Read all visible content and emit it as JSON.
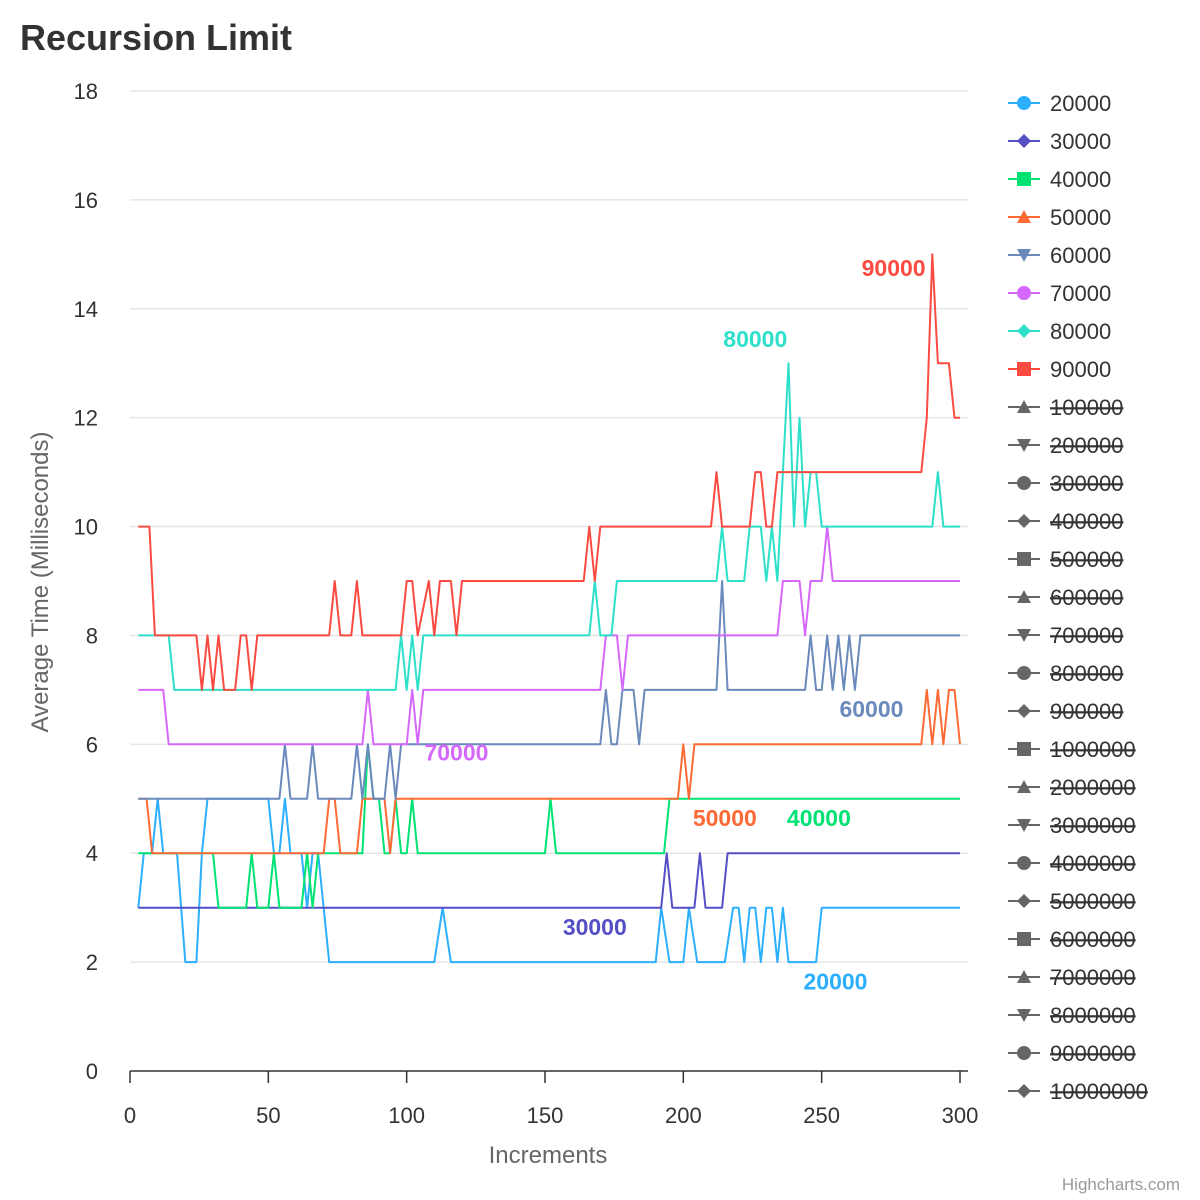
{
  "chart_data": {
    "type": "line",
    "title": "Recursion Limit",
    "xlabel": "Increments",
    "ylabel": "Average Time (Milliseconds)",
    "xlim": [
      0,
      300
    ],
    "ylim": [
      0,
      18
    ],
    "x_ticks": [
      0,
      50,
      100,
      150,
      200,
      250,
      300
    ],
    "y_ticks": [
      0,
      2,
      4,
      6,
      8,
      10,
      12,
      14,
      16,
      18
    ],
    "grid": "horizontal",
    "legend_position": "right",
    "credits": "Highcharts.com",
    "series": [
      {
        "name": "20000",
        "color": "#2caffe",
        "marker": "circle",
        "visible": true,
        "label_at": [
          255,
          1.5
        ],
        "points": [
          [
            3,
            3
          ],
          [
            5,
            4
          ],
          [
            8,
            4
          ],
          [
            10,
            5
          ],
          [
            12,
            4
          ],
          [
            15,
            4
          ],
          [
            17,
            4
          ],
          [
            20,
            2
          ],
          [
            24,
            2
          ],
          [
            26,
            4
          ],
          [
            28,
            5
          ],
          [
            50,
            5
          ],
          [
            52,
            4
          ],
          [
            54,
            4
          ],
          [
            56,
            5
          ],
          [
            58,
            4
          ],
          [
            60,
            4
          ],
          [
            62,
            4
          ],
          [
            64,
            3
          ],
          [
            66,
            4
          ],
          [
            68,
            4
          ],
          [
            72,
            2
          ],
          [
            110,
            2
          ],
          [
            113,
            3
          ],
          [
            116,
            2
          ],
          [
            190,
            2
          ],
          [
            192,
            3
          ],
          [
            195,
            2
          ],
          [
            198,
            2
          ],
          [
            200,
            2
          ],
          [
            202,
            3
          ],
          [
            205,
            2
          ],
          [
            215,
            2
          ],
          [
            218,
            3
          ],
          [
            220,
            3
          ],
          [
            222,
            2
          ],
          [
            224,
            3
          ],
          [
            226,
            3
          ],
          [
            228,
            2
          ],
          [
            230,
            3
          ],
          [
            232,
            3
          ],
          [
            234,
            2
          ],
          [
            236,
            3
          ],
          [
            238,
            2
          ],
          [
            248,
            2
          ],
          [
            250,
            3
          ],
          [
            300,
            3
          ]
        ]
      },
      {
        "name": "30000",
        "color": "#544fc5",
        "marker": "diamond",
        "visible": true,
        "label_at": [
          168,
          2.5
        ],
        "points": [
          [
            3,
            3
          ],
          [
            192,
            3
          ],
          [
            194,
            4
          ],
          [
            196,
            3
          ],
          [
            204,
            3
          ],
          [
            206,
            4
          ],
          [
            208,
            3
          ],
          [
            214,
            3
          ],
          [
            216,
            4
          ],
          [
            300,
            4
          ]
        ]
      },
      {
        "name": "40000",
        "color": "#00e272",
        "marker": "square",
        "visible": true,
        "label_at": [
          249,
          4.5
        ],
        "points": [
          [
            3,
            4
          ],
          [
            30,
            4
          ],
          [
            32,
            3
          ],
          [
            42,
            3
          ],
          [
            44,
            4
          ],
          [
            46,
            3
          ],
          [
            50,
            3
          ],
          [
            52,
            4
          ],
          [
            54,
            3
          ],
          [
            62,
            3
          ],
          [
            64,
            4
          ],
          [
            66,
            3
          ],
          [
            68,
            4
          ],
          [
            70,
            4
          ],
          [
            84,
            4
          ],
          [
            86,
            6
          ],
          [
            88,
            5
          ],
          [
            90,
            5
          ],
          [
            92,
            4
          ],
          [
            94,
            4
          ],
          [
            96,
            5
          ],
          [
            98,
            4
          ],
          [
            100,
            4
          ],
          [
            102,
            5
          ],
          [
            104,
            4
          ],
          [
            150,
            4
          ],
          [
            152,
            5
          ],
          [
            154,
            4
          ],
          [
            193,
            4
          ],
          [
            195,
            5
          ],
          [
            300,
            5
          ]
        ]
      },
      {
        "name": "50000",
        "color": "#fe6a35",
        "marker": "triangle",
        "visible": true,
        "label_at": [
          215,
          4.5
        ],
        "points": [
          [
            3,
            5
          ],
          [
            6,
            5
          ],
          [
            8,
            4
          ],
          [
            70,
            4
          ],
          [
            72,
            5
          ],
          [
            74,
            5
          ],
          [
            76,
            4
          ],
          [
            82,
            4
          ],
          [
            84,
            5
          ],
          [
            86,
            5
          ],
          [
            92,
            5
          ],
          [
            94,
            4
          ],
          [
            96,
            5
          ],
          [
            198,
            5
          ],
          [
            200,
            6
          ],
          [
            202,
            5
          ],
          [
            204,
            6
          ],
          [
            286,
            6
          ],
          [
            288,
            7
          ],
          [
            290,
            6
          ],
          [
            292,
            7
          ],
          [
            294,
            6
          ],
          [
            296,
            7
          ],
          [
            298,
            7
          ],
          [
            300,
            6
          ]
        ]
      },
      {
        "name": "60000",
        "color": "#6b8abc",
        "marker": "triangle-down",
        "visible": true,
        "label_at": [
          268,
          6.5
        ],
        "points": [
          [
            3,
            5
          ],
          [
            54,
            5
          ],
          [
            56,
            6
          ],
          [
            58,
            5
          ],
          [
            64,
            5
          ],
          [
            66,
            6
          ],
          [
            68,
            5
          ],
          [
            74,
            5
          ],
          [
            76,
            5
          ],
          [
            80,
            5
          ],
          [
            82,
            6
          ],
          [
            84,
            5
          ],
          [
            86,
            6
          ],
          [
            88,
            5
          ],
          [
            92,
            5
          ],
          [
            94,
            6
          ],
          [
            96,
            5
          ],
          [
            98,
            6
          ],
          [
            170,
            6
          ],
          [
            172,
            7
          ],
          [
            174,
            6
          ],
          [
            176,
            6
          ],
          [
            178,
            7
          ],
          [
            182,
            7
          ],
          [
            184,
            6
          ],
          [
            186,
            7
          ],
          [
            212,
            7
          ],
          [
            214,
            9
          ],
          [
            216,
            7
          ],
          [
            244,
            7
          ],
          [
            246,
            8
          ],
          [
            248,
            7
          ],
          [
            250,
            7
          ],
          [
            252,
            8
          ],
          [
            254,
            7
          ],
          [
            256,
            8
          ],
          [
            258,
            7
          ],
          [
            260,
            8
          ],
          [
            262,
            7
          ],
          [
            264,
            8
          ],
          [
            300,
            8
          ]
        ]
      },
      {
        "name": "70000",
        "color": "#d568fb",
        "marker": "circle",
        "visible": true,
        "label_at": [
          118,
          5.7
        ],
        "points": [
          [
            3,
            7
          ],
          [
            12,
            7
          ],
          [
            14,
            6
          ],
          [
            84,
            6
          ],
          [
            86,
            7
          ],
          [
            88,
            6
          ],
          [
            98,
            6
          ],
          [
            100,
            6
          ],
          [
            102,
            7
          ],
          [
            104,
            6
          ],
          [
            106,
            7
          ],
          [
            170,
            7
          ],
          [
            172,
            8
          ],
          [
            176,
            8
          ],
          [
            178,
            7
          ],
          [
            180,
            8
          ],
          [
            234,
            8
          ],
          [
            236,
            9
          ],
          [
            240,
            9
          ],
          [
            242,
            9
          ],
          [
            244,
            8
          ],
          [
            246,
            9
          ],
          [
            250,
            9
          ],
          [
            252,
            10
          ],
          [
            254,
            9
          ],
          [
            300,
            9
          ]
        ]
      },
      {
        "name": "80000",
        "color": "#2ee0ca",
        "marker": "diamond",
        "visible": true,
        "label_at": [
          226,
          13.3
        ],
        "points": [
          [
            3,
            8
          ],
          [
            14,
            8
          ],
          [
            16,
            7
          ],
          [
            96,
            7
          ],
          [
            98,
            8
          ],
          [
            100,
            7
          ],
          [
            102,
            8
          ],
          [
            104,
            7
          ],
          [
            106,
            8
          ],
          [
            166,
            8
          ],
          [
            168,
            9
          ],
          [
            170,
            8
          ],
          [
            174,
            8
          ],
          [
            176,
            9
          ],
          [
            212,
            9
          ],
          [
            214,
            10
          ],
          [
            216,
            9
          ],
          [
            222,
            9
          ],
          [
            224,
            10
          ],
          [
            228,
            10
          ],
          [
            230,
            9
          ],
          [
            232,
            10
          ],
          [
            234,
            9
          ],
          [
            236,
            11
          ],
          [
            238,
            13
          ],
          [
            240,
            10
          ],
          [
            242,
            12
          ],
          [
            244,
            10
          ],
          [
            246,
            11
          ],
          [
            248,
            11
          ],
          [
            250,
            10
          ],
          [
            290,
            10
          ],
          [
            292,
            11
          ],
          [
            294,
            10
          ],
          [
            300,
            10
          ]
        ]
      },
      {
        "name": "90000",
        "color": "#fa4b42",
        "marker": "square",
        "visible": true,
        "label_at": [
          276,
          14.6
        ],
        "points": [
          [
            3,
            10
          ],
          [
            7,
            10
          ],
          [
            9,
            8
          ],
          [
            24,
            8
          ],
          [
            26,
            7
          ],
          [
            28,
            8
          ],
          [
            30,
            7
          ],
          [
            32,
            8
          ],
          [
            34,
            7
          ],
          [
            38,
            7
          ],
          [
            40,
            8
          ],
          [
            42,
            8
          ],
          [
            44,
            7
          ],
          [
            46,
            8
          ],
          [
            72,
            8
          ],
          [
            74,
            9
          ],
          [
            76,
            8
          ],
          [
            80,
            8
          ],
          [
            82,
            9
          ],
          [
            84,
            8
          ],
          [
            98,
            8
          ],
          [
            100,
            9
          ],
          [
            102,
            9
          ],
          [
            104,
            8
          ],
          [
            108,
            9
          ],
          [
            110,
            8
          ],
          [
            112,
            9
          ],
          [
            116,
            9
          ],
          [
            118,
            8
          ],
          [
            120,
            9
          ],
          [
            164,
            9
          ],
          [
            166,
            10
          ],
          [
            168,
            9
          ],
          [
            170,
            10
          ],
          [
            210,
            10
          ],
          [
            212,
            11
          ],
          [
            214,
            10
          ],
          [
            224,
            10
          ],
          [
            226,
            11
          ],
          [
            228,
            11
          ],
          [
            230,
            10
          ],
          [
            232,
            10
          ],
          [
            234,
            11
          ],
          [
            286,
            11
          ],
          [
            288,
            12
          ],
          [
            290,
            15
          ],
          [
            292,
            13
          ],
          [
            296,
            13
          ],
          [
            298,
            12
          ],
          [
            300,
            12
          ]
        ]
      },
      {
        "name": "100000",
        "marker": "triangle",
        "visible": false
      },
      {
        "name": "200000",
        "marker": "triangle-down",
        "visible": false
      },
      {
        "name": "300000",
        "marker": "circle",
        "visible": false
      },
      {
        "name": "400000",
        "marker": "diamond",
        "visible": false
      },
      {
        "name": "500000",
        "marker": "square",
        "visible": false
      },
      {
        "name": "600000",
        "marker": "triangle",
        "visible": false
      },
      {
        "name": "700000",
        "marker": "triangle-down",
        "visible": false
      },
      {
        "name": "800000",
        "marker": "circle",
        "visible": false
      },
      {
        "name": "900000",
        "marker": "diamond",
        "visible": false
      },
      {
        "name": "1000000",
        "marker": "square",
        "visible": false
      },
      {
        "name": "2000000",
        "marker": "triangle",
        "visible": false
      },
      {
        "name": "3000000",
        "marker": "triangle-down",
        "visible": false
      },
      {
        "name": "4000000",
        "marker": "circle",
        "visible": false
      },
      {
        "name": "5000000",
        "marker": "diamond",
        "visible": false
      },
      {
        "name": "6000000",
        "marker": "square",
        "visible": false
      },
      {
        "name": "7000000",
        "marker": "triangle",
        "visible": false
      },
      {
        "name": "8000000",
        "marker": "triangle-down",
        "visible": false
      },
      {
        "name": "9000000",
        "marker": "circle",
        "visible": false
      },
      {
        "name": "10000000",
        "marker": "diamond",
        "visible": false
      }
    ],
    "hidden_color": "#666666"
  }
}
